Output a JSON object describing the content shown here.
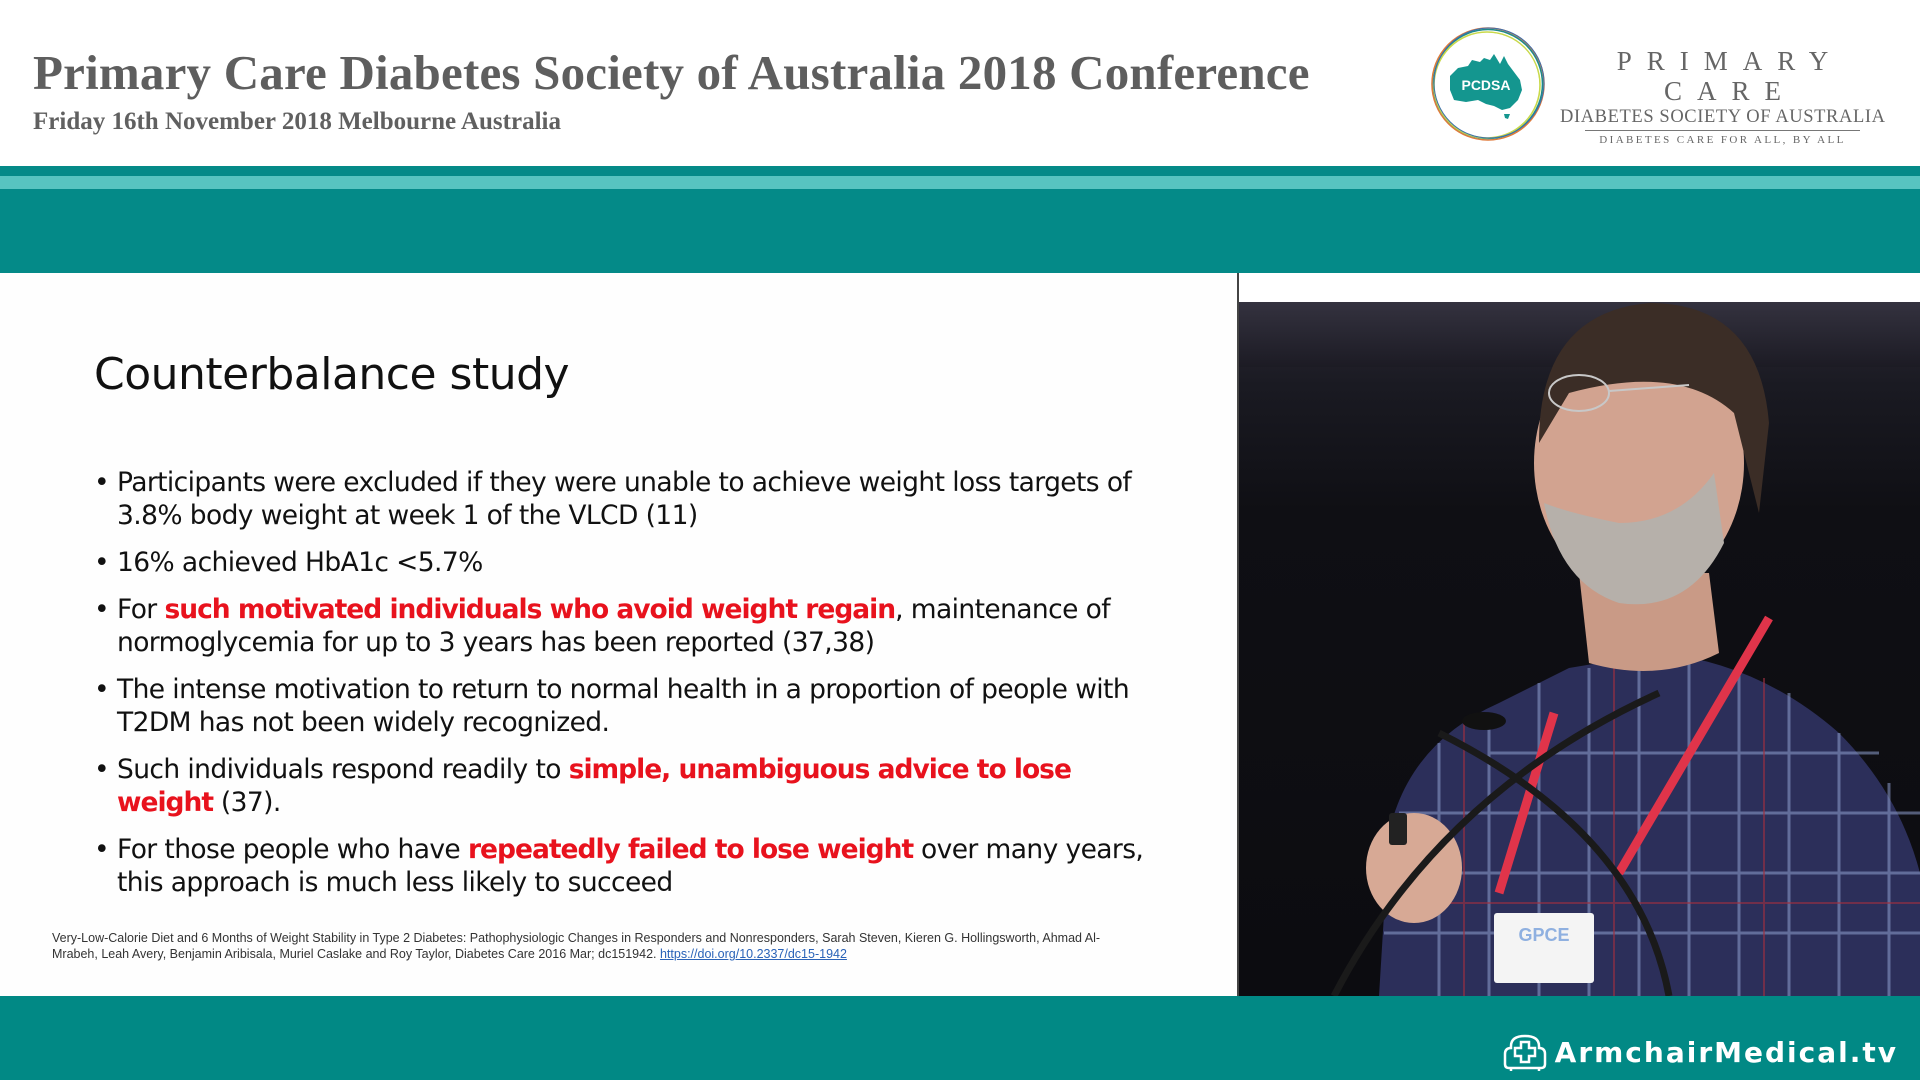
{
  "header": {
    "title": "Primary Care Diabetes Society of Australia 2018 Conference",
    "subtitle": "Friday 16th November 2018 Melbourne Australia",
    "logo": {
      "badge_text": "PCDSA",
      "line1": "PRIMARY CARE",
      "line2": "DIABETES SOCIETY OF AUSTRALIA",
      "tagline": "DIABETES CARE FOR ALL, BY ALL"
    }
  },
  "colors": {
    "teal_band": "#048a88",
    "teal_stripe": "#57c4c0",
    "footer_teal": "#018985",
    "highlight_red": "#e8121d",
    "header_grey": "#5e5e5e",
    "link_blue": "#2a63b8"
  },
  "slide": {
    "title": "Counterbalance study",
    "bullets": [
      {
        "parts": [
          {
            "text": "Participants were excluded if they were unable to achieve weight loss targets of 3.8% body weight at week 1 of the VLCD (11)",
            "highlight": false
          }
        ]
      },
      {
        "parts": [
          {
            "text": "16% achieved HbA1c <5.7%",
            "highlight": false
          }
        ]
      },
      {
        "parts": [
          {
            "text": "For ",
            "highlight": false
          },
          {
            "text": "such motivated individuals who avoid weight regain",
            "highlight": true
          },
          {
            "text": ", maintenance of normoglycemia for up to 3 years has been reported (37,38)",
            "highlight": false
          }
        ]
      },
      {
        "parts": [
          {
            "text": "The intense motivation to return to normal health in a proportion of people with T2DM has not been widely recognized.",
            "highlight": false
          }
        ]
      },
      {
        "parts": [
          {
            "text": "Such individuals respond readily to ",
            "highlight": false
          },
          {
            "text": "simple, unambiguous advice to lose weight",
            "highlight": true
          },
          {
            "text": " (37).",
            "highlight": false
          }
        ]
      },
      {
        "parts": [
          {
            "text": "For those people who have ",
            "highlight": false
          },
          {
            "text": "repeatedly failed to lose weight",
            "highlight": true
          },
          {
            "text": " over many years, this approach is much less likely to succeed",
            "highlight": false
          }
        ]
      }
    ],
    "bullet_glyph": "•",
    "footnote": {
      "text": "Very-Low-Calorie Diet and 6 Months of Weight Stability in Type 2 Diabetes: Pathophysiologic Changes in Responders and Nonresponders, Sarah Steven, Kieren G. Hollingsworth, Ahmad Al-Mrabeh, Leah Avery, Benjamin Aribisala, Muriel Caslake and Roy Taylor, Diabetes Care 2016 Mar; dc151942. ",
      "link": "https://doi.org/10.2337/dc15-1942"
    }
  },
  "video": {
    "description": "Speaker with grey beard and glasses in checked shirt, red lanyard, speaking at microphones",
    "badge_text": "GPCE"
  },
  "footer": {
    "brand": "ArmchairMedical.tv",
    "brand_icon": "armchair-cross-icon"
  }
}
